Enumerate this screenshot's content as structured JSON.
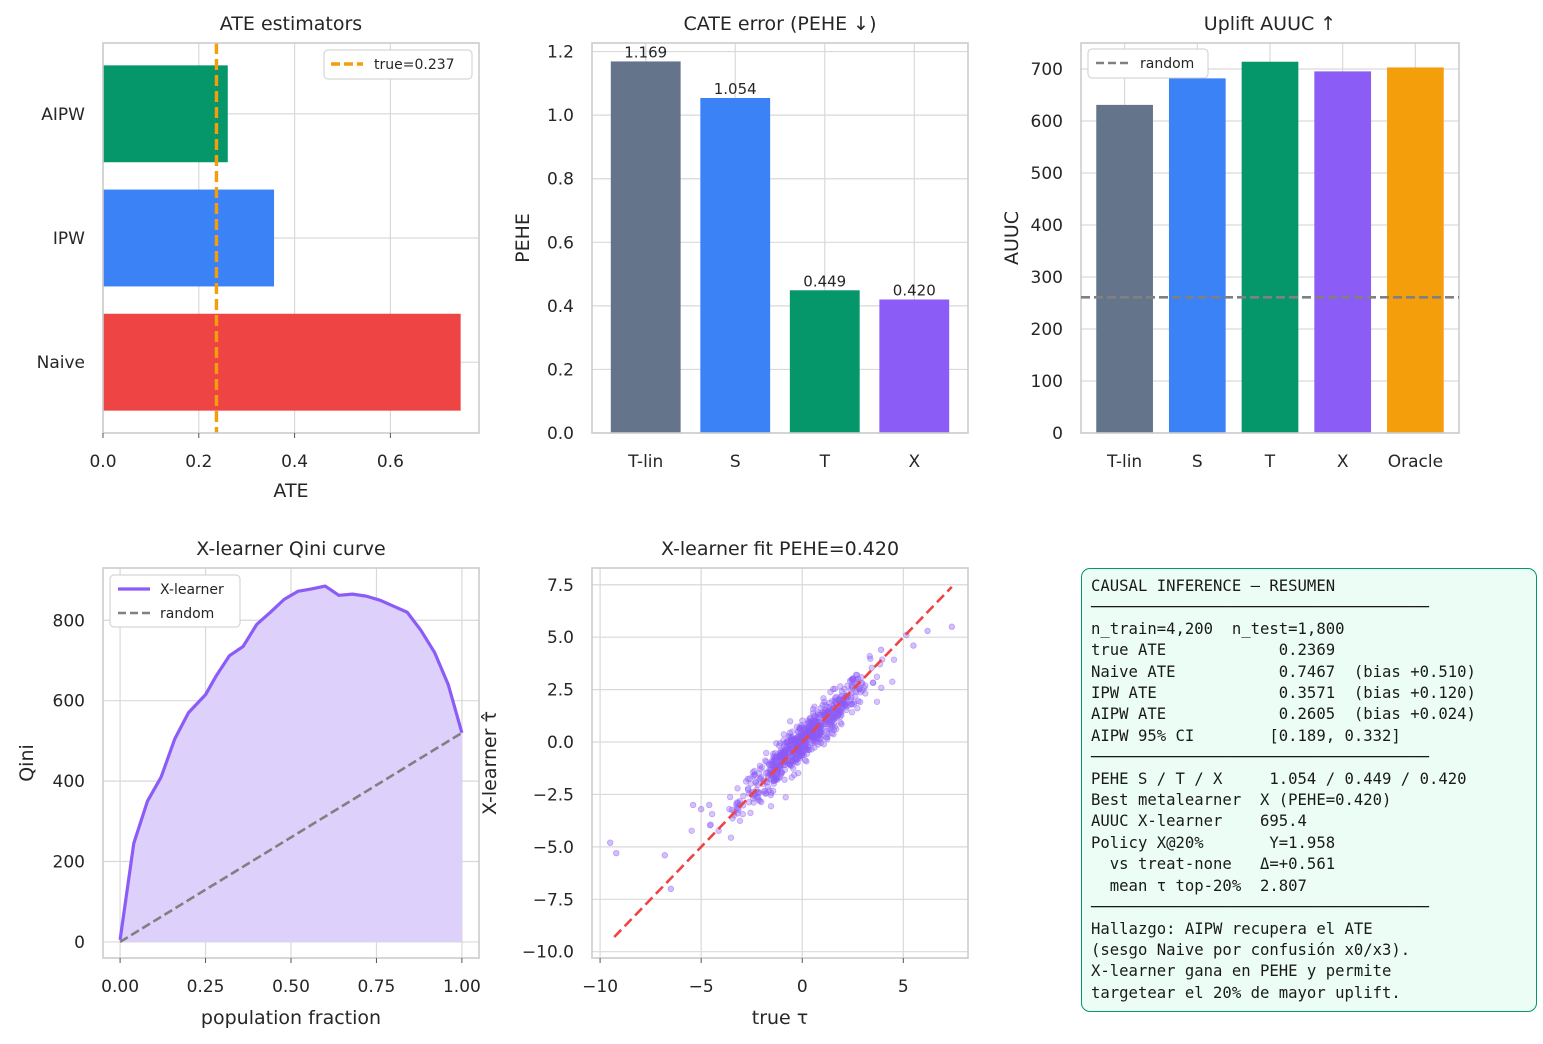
{
  "colors": {
    "slate": "#64748b",
    "blue": "#3b82f6",
    "green": "#059669",
    "purple": "#8b5cf6",
    "red": "#ef4444",
    "orange": "#f59e0b",
    "gray": "#808080"
  },
  "chart_data": [
    {
      "id": "ate",
      "type": "bar",
      "orientation": "horizontal",
      "title": "ATE estimators",
      "xlabel": "ATE",
      "ylabel": "",
      "categories": [
        "Naive",
        "IPW",
        "AIPW"
      ],
      "values": [
        0.7467,
        0.3571,
        0.2605
      ],
      "bar_colors": [
        "#ef4444",
        "#3b82f6",
        "#059669"
      ],
      "xlim": [
        0,
        0.785
      ],
      "xticks": [
        0.0,
        0.2,
        0.4,
        0.6
      ],
      "xtick_labels": [
        "0.0",
        "0.2",
        "0.4",
        "0.6"
      ],
      "reference_line": {
        "value": 0.2369,
        "label": "true=0.237",
        "color": "#f59e0b",
        "style": "dashed"
      },
      "legend": "top-right",
      "grid": true
    },
    {
      "id": "pehe",
      "type": "bar",
      "title": "CATE error (PEHE ↓)",
      "xlabel": "",
      "ylabel": "PEHE",
      "categories": [
        "T-lin",
        "S",
        "T",
        "X"
      ],
      "values": [
        1.169,
        1.054,
        0.449,
        0.42
      ],
      "data_labels": [
        "1.169",
        "1.054",
        "0.449",
        "0.420"
      ],
      "bar_colors": [
        "#64748b",
        "#3b82f6",
        "#059669",
        "#8b5cf6"
      ],
      "ylim": [
        0,
        1.227
      ],
      "yticks": [
        0.0,
        0.2,
        0.4,
        0.6,
        0.8,
        1.0,
        1.2
      ],
      "ytick_labels": [
        "0.0",
        "0.2",
        "0.4",
        "0.6",
        "0.8",
        "1.0",
        "1.2"
      ],
      "grid": true
    },
    {
      "id": "auuc",
      "type": "bar",
      "title": "Uplift AUUC ↑",
      "xlabel": "",
      "ylabel": "AUUC",
      "categories": [
        "T-lin",
        "S",
        "T",
        "X",
        "Oracle"
      ],
      "values": [
        631,
        682,
        714,
        695.4,
        703
      ],
      "bar_colors": [
        "#64748b",
        "#3b82f6",
        "#059669",
        "#8b5cf6",
        "#f59e0b"
      ],
      "ylim": [
        0,
        750
      ],
      "yticks": [
        0,
        100,
        200,
        300,
        400,
        500,
        600,
        700
      ],
      "ytick_labels": [
        "0",
        "100",
        "200",
        "300",
        "400",
        "500",
        "600",
        "700"
      ],
      "reference_line": {
        "value": 261,
        "label": "random",
        "color": "#808080",
        "style": "dashed"
      },
      "legend": "top-left",
      "grid": true
    },
    {
      "id": "qini",
      "type": "area",
      "title": "X-learner Qini curve",
      "xlabel": "population fraction",
      "ylabel": "Qini",
      "xlim": [
        -0.05,
        1.05
      ],
      "ylim": [
        -40,
        930
      ],
      "xticks": [
        0.0,
        0.25,
        0.5,
        0.75,
        1.0
      ],
      "xtick_labels": [
        "0.00",
        "0.25",
        "0.50",
        "0.75",
        "1.00"
      ],
      "yticks": [
        0,
        200,
        400,
        600,
        800
      ],
      "ytick_labels": [
        "0",
        "200",
        "400",
        "600",
        "800"
      ],
      "series": [
        {
          "name": "X-learner",
          "color": "#8b5cf6",
          "fill": "#ddd0fb",
          "x": [
            0.0,
            0.04,
            0.08,
            0.12,
            0.16,
            0.2,
            0.25,
            0.28,
            0.32,
            0.36,
            0.4,
            0.44,
            0.48,
            0.52,
            0.56,
            0.6,
            0.64,
            0.68,
            0.72,
            0.76,
            0.8,
            0.84,
            0.88,
            0.92,
            0.96,
            1.0
          ],
          "y": [
            5,
            245,
            350,
            410,
            505,
            570,
            615,
            660,
            712,
            735,
            790,
            820,
            852,
            872,
            878,
            885,
            862,
            865,
            860,
            850,
            835,
            820,
            775,
            720,
            640,
            520
          ]
        },
        {
          "name": "random",
          "color": "#808080",
          "style": "dashed",
          "x": [
            0.0,
            1.0
          ],
          "y": [
            0,
            520
          ]
        }
      ],
      "legend": "top-left",
      "grid": true
    },
    {
      "id": "fit",
      "type": "scatter",
      "title": "X-learner fit  PEHE=0.420",
      "xlabel": "true τ",
      "ylabel": "X-learner τ̂",
      "xlim": [
        -10.4,
        8.2
      ],
      "ylim": [
        -10.3,
        8.3
      ],
      "xticks": [
        -10,
        -5,
        0,
        5
      ],
      "xtick_labels": [
        "−10",
        "−5",
        "0",
        "5"
      ],
      "yticks": [
        -10,
        -7.5,
        -5,
        -2.5,
        0,
        2.5,
        5,
        7.5
      ],
      "ytick_labels": [
        "−10.0",
        "−7.5",
        "−5.0",
        "−2.5",
        "0.0",
        "2.5",
        "5.0",
        "7.5"
      ],
      "points": {
        "color": "#8b5cf6",
        "sample_x": [
          -9.5,
          -9.2,
          -6.8,
          -6.5,
          -5.4,
          -5.0,
          -4.6,
          -3.2,
          0.9,
          2.4,
          3.9,
          5.5,
          6.2,
          7.4
        ],
        "sample_y": [
          -4.8,
          -5.3,
          -5.4,
          -7.0,
          -3.0,
          -3.2,
          -3.0,
          -3.4,
          0.6,
          2.0,
          4.4,
          4.6,
          5.3,
          5.5
        ],
        "n_shown": 1800,
        "slope": 0.9,
        "spread": 0.45,
        "x_range": [
          -5.5,
          7.5
        ]
      },
      "identity_line": {
        "color": "#ef4444",
        "style": "dashed",
        "x": [
          -9.3,
          7.4
        ],
        "y": [
          -9.3,
          7.4
        ]
      },
      "grid": true
    }
  ],
  "summary": {
    "lines": [
      "CAUSAL INFERENCE — RESUMEN",
      "────────────────────────────────────",
      "n_train=4,200  n_test=1,800",
      "true ATE            0.2369",
      "Naive ATE           0.7467  (bias +0.510)",
      "IPW ATE             0.3571  (bias +0.120)",
      "AIPW ATE            0.2605  (bias +0.024)",
      "AIPW 95% CI        [0.189, 0.332]",
      "────────────────────────────────────",
      "PEHE S / T / X     1.054 / 0.449 / 0.420",
      "Best metalearner  X (PEHE=0.420)",
      "AUUC X-learner    695.4",
      "Policy X@20%       Y=1.958",
      "  vs treat-none   Δ=+0.561",
      "  mean τ top-20%  2.807",
      "────────────────────────────────────",
      "Hallazgo: AIPW recupera el ATE",
      "(sesgo Naive por confusión x0/x3).",
      "X-learner gana en PEHE y permite",
      "targetear el 20% de mayor uplift."
    ]
  }
}
